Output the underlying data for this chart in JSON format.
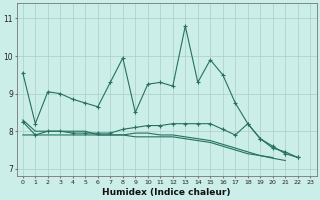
{
  "xlabel": "Humidex (Indice chaleur)",
  "background_color": "#cceee8",
  "grid_color": "#aacccc",
  "line_color": "#267060",
  "xlim": [
    -0.5,
    23.5
  ],
  "ylim": [
    6.8,
    11.4
  ],
  "yticks": [
    7,
    8,
    9,
    10,
    11
  ],
  "xticks": [
    0,
    1,
    2,
    3,
    4,
    5,
    6,
    7,
    8,
    9,
    10,
    11,
    12,
    13,
    14,
    15,
    16,
    17,
    18,
    19,
    20,
    21,
    22,
    23
  ],
  "series1_x": [
    0,
    1,
    2,
    3,
    4,
    5,
    6,
    7,
    8,
    9,
    10,
    11,
    12,
    13,
    14,
    15,
    16,
    17,
    18,
    19,
    20,
    21,
    22
  ],
  "series1_y": [
    9.55,
    8.2,
    9.05,
    9.0,
    8.85,
    8.75,
    8.65,
    9.3,
    9.95,
    8.5,
    9.25,
    9.3,
    9.2,
    10.8,
    9.3,
    9.9,
    9.5,
    8.75,
    8.2,
    7.8,
    7.6,
    7.4,
    7.3
  ],
  "series2_x": [
    0,
    1,
    2,
    3,
    4,
    5,
    6,
    7,
    8,
    9,
    10,
    11,
    12,
    13,
    14,
    15,
    16,
    17,
    18,
    19,
    20,
    21,
    22
  ],
  "series2_y": [
    8.25,
    7.9,
    8.0,
    8.0,
    7.95,
    7.95,
    7.95,
    7.95,
    8.05,
    8.1,
    8.15,
    8.15,
    8.2,
    8.2,
    8.2,
    8.2,
    8.05,
    7.9,
    8.2,
    7.8,
    7.55,
    7.45,
    7.3
  ],
  "series3_x": [
    0,
    1,
    2,
    3,
    4,
    5,
    6,
    7,
    8,
    9,
    10,
    11,
    12,
    13,
    14,
    15,
    16,
    17,
    18,
    19,
    20,
    21
  ],
  "series3_y": [
    7.9,
    7.9,
    7.9,
    7.9,
    7.9,
    7.9,
    7.9,
    7.9,
    7.9,
    7.95,
    7.95,
    7.9,
    7.9,
    7.85,
    7.8,
    7.75,
    7.65,
    7.55,
    7.45,
    7.35,
    7.28,
    7.22
  ],
  "series4_x": [
    0,
    1,
    2,
    3,
    4,
    5,
    6,
    7,
    8,
    9,
    10,
    11,
    12,
    13,
    14,
    15,
    16,
    17,
    18,
    19,
    20
  ],
  "series4_y": [
    8.3,
    8.0,
    8.0,
    8.0,
    8.0,
    8.0,
    7.9,
    7.9,
    7.9,
    7.85,
    7.85,
    7.85,
    7.85,
    7.8,
    7.75,
    7.7,
    7.6,
    7.5,
    7.4,
    7.35,
    7.3
  ]
}
